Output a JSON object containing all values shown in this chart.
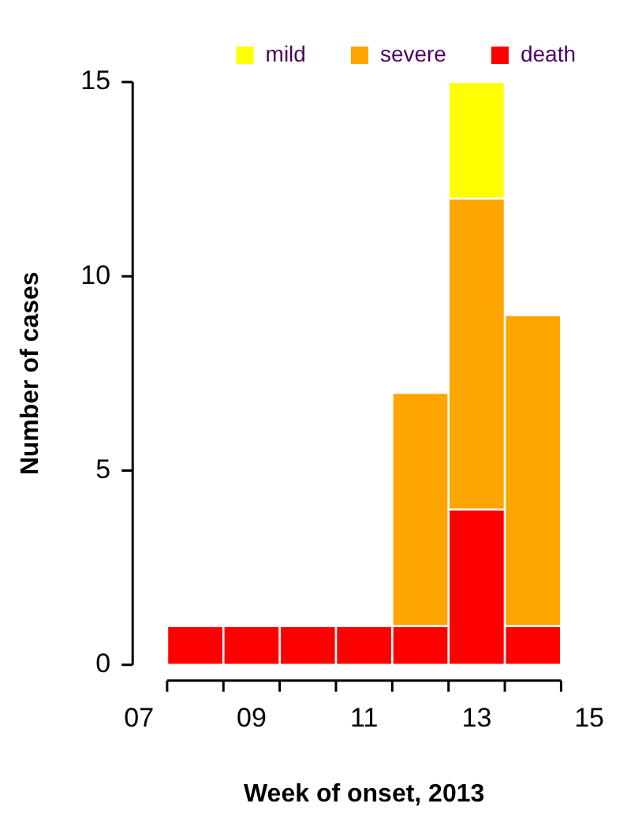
{
  "chart_data": {
    "type": "bar",
    "xlabel": "Week of onset, 2013",
    "ylabel": "Number of cases",
    "x": [
      8,
      9,
      10,
      11,
      12,
      13,
      14
    ],
    "stacked": true,
    "series": [
      {
        "name": "death",
        "color": "#ff0000",
        "values": [
          1,
          1,
          1,
          1,
          1,
          4,
          1
        ]
      },
      {
        "name": "severe",
        "color": "#ffa500",
        "values": [
          0,
          0,
          0,
          0,
          6,
          8,
          8
        ]
      },
      {
        "name": "mild",
        "color": "#ffff00",
        "values": [
          0,
          0,
          0,
          0,
          0,
          3,
          0
        ]
      }
    ],
    "xlim": [
      7,
      15
    ],
    "xticks": [
      {
        "value": 7,
        "label": "07"
      },
      {
        "value": 9,
        "label": "09"
      },
      {
        "value": 11,
        "label": "11"
      },
      {
        "value": 13,
        "label": "13"
      },
      {
        "value": 15,
        "label": "15"
      }
    ],
    "ylim": [
      0,
      15
    ],
    "yticks": [
      0,
      5,
      10,
      15
    ],
    "grid": false,
    "legend": "top right"
  }
}
